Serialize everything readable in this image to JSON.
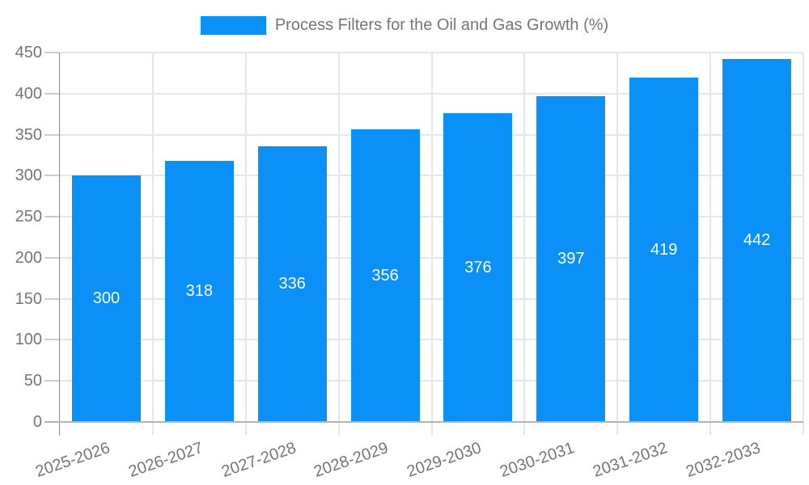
{
  "legend": {
    "label": "Process Filters for the Oil and Gas Growth (%)"
  },
  "chart_data": {
    "type": "bar",
    "title": "Process Filters for the Oil and Gas Growth (%)",
    "categories": [
      "2025-2026",
      "2026-2027",
      "2027-2028",
      "2028-2029",
      "2029-2030",
      "2030-2031",
      "2031-2032",
      "2032-2033"
    ],
    "values": [
      300,
      318,
      336,
      356,
      376,
      397,
      419,
      442
    ],
    "xlabel": "",
    "ylabel": "",
    "ylim": [
      0,
      450
    ],
    "yticks": [
      0,
      50,
      100,
      150,
      200,
      250,
      300,
      350,
      400,
      450
    ],
    "grid": true,
    "legend_position": "top",
    "legend_entries": [
      "Process Filters for the Oil and Gas Growth (%)"
    ],
    "bar_color": "#0a90f7",
    "value_label_color": "#ffffff",
    "axis_text_color": "#757575",
    "gridline_color": "#e6e6e6",
    "axis_line_color": "#878787",
    "baseline_color": "#b3b3b3",
    "background_color": "#ffffff"
  }
}
